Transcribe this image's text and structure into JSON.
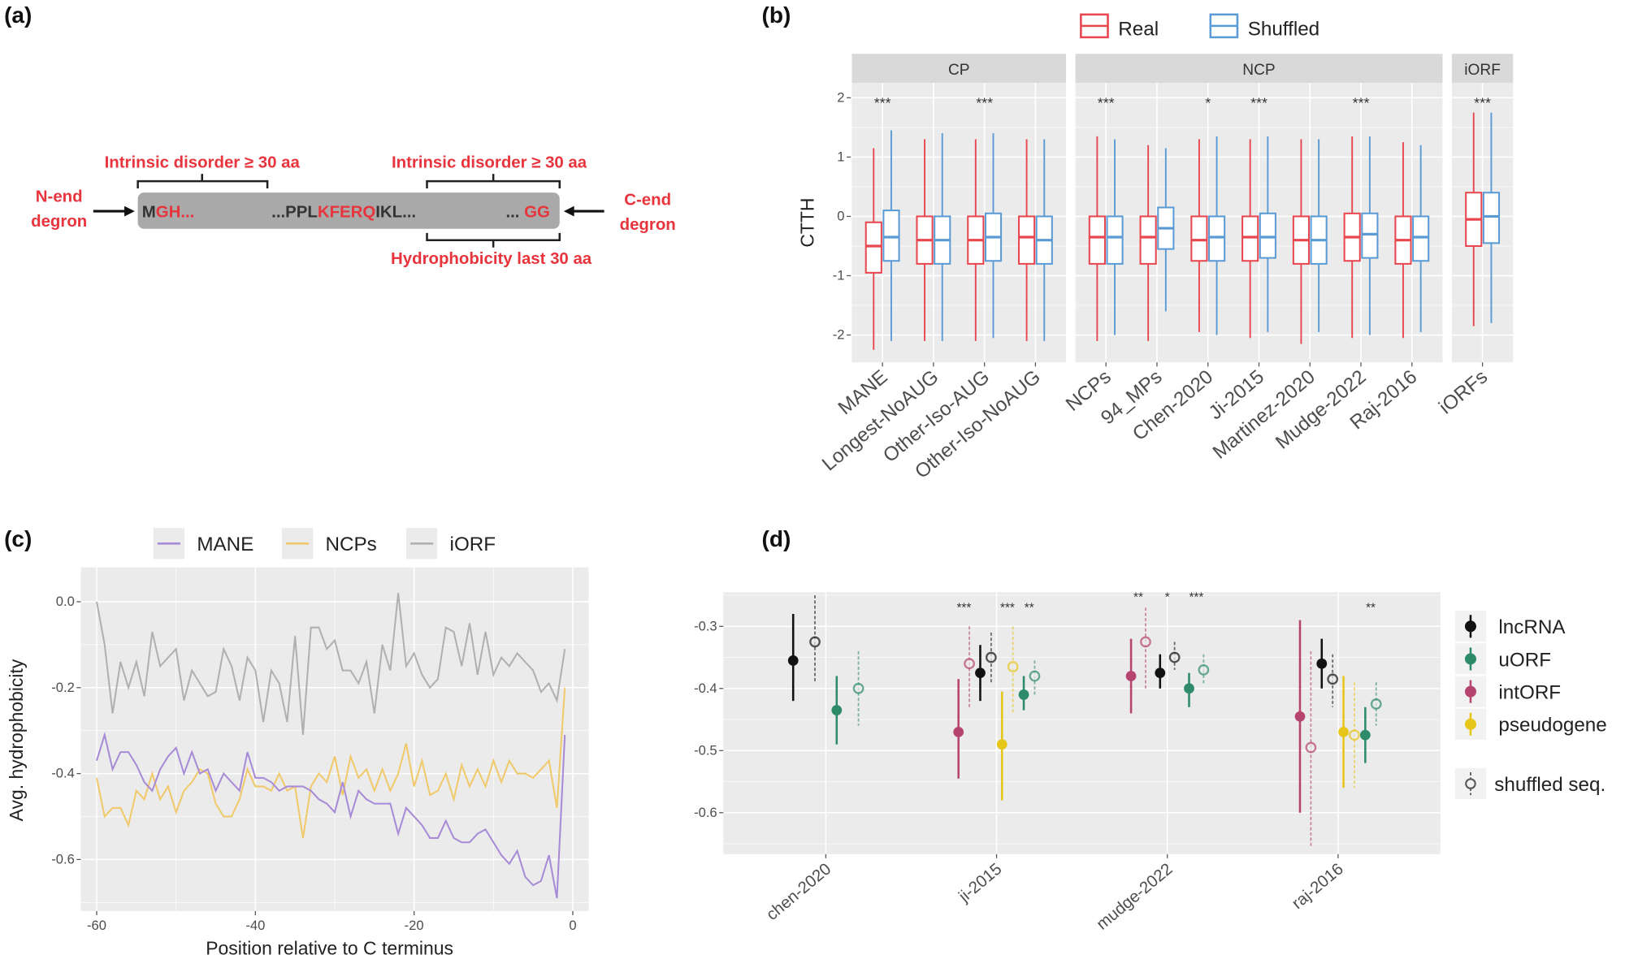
{
  "panel_labels": [
    "(a)",
    "(b)",
    "(c)",
    "(d)"
  ],
  "panel_a": {
    "n_label": [
      "N-end",
      "degron"
    ],
    "c_label": [
      "C-end",
      "degron"
    ],
    "top_left": "Intrinsic disorder ≥ 30 aa",
    "top_right": "Intrinsic disorder ≥ 30 aa",
    "bottom_right": "Hydrophobicity last 30 aa",
    "seq": {
      "m": "M",
      "gh": "GH...",
      "ppl": "...PPL",
      "kferq": "KFERQ",
      "ikl": "IKL...",
      "dots": "... ",
      "gg": "GG"
    },
    "colors": {
      "highlight": "#e8343c",
      "bar": "#a9a9a9"
    }
  },
  "chart_data": [
    {
      "type": "box",
      "panel": "b",
      "ylabel": "CTTH",
      "ylim": [
        -2.5,
        2.3
      ],
      "yticks": [
        -2,
        -1,
        0,
        1,
        2
      ],
      "legend": [
        {
          "name": "Real",
          "color": "#e8474f"
        },
        {
          "name": "Shuffled",
          "color": "#5b9bd5"
        }
      ],
      "legend_position": "top",
      "facets": [
        {
          "name": "CP",
          "categories": [
            {
              "label": "MANE",
              "sig": "***",
              "real": [
                -2.25,
                -0.95,
                -0.5,
                -0.1,
                1.15
              ],
              "shuffled": [
                -2.1,
                -0.75,
                -0.35,
                0.1,
                1.45
              ]
            },
            {
              "label": "Longest-NoAUG",
              "sig": "",
              "real": [
                -2.1,
                -0.8,
                -0.4,
                0.0,
                1.3
              ],
              "shuffled": [
                -2.1,
                -0.8,
                -0.4,
                0.0,
                1.4
              ]
            },
            {
              "label": "Other-Iso-AUG",
              "sig": "***",
              "real": [
                -2.1,
                -0.8,
                -0.4,
                0.0,
                1.3
              ],
              "shuffled": [
                -2.05,
                -0.75,
                -0.35,
                0.05,
                1.4
              ]
            },
            {
              "label": "Other-Iso-NoAUG",
              "sig": "",
              "real": [
                -2.1,
                -0.8,
                -0.35,
                0.0,
                1.3
              ],
              "shuffled": [
                -2.1,
                -0.8,
                -0.4,
                0.0,
                1.3
              ]
            }
          ]
        },
        {
          "name": "NCP",
          "categories": [
            {
              "label": "NCPs",
              "sig": "***",
              "real": [
                -2.1,
                -0.8,
                -0.35,
                0.0,
                1.35
              ],
              "shuffled": [
                -2.0,
                -0.8,
                -0.35,
                0.0,
                1.3
              ]
            },
            {
              "label": "94_MPs",
              "sig": "",
              "real": [
                -2.1,
                -0.8,
                -0.35,
                0.0,
                1.2
              ],
              "shuffled": [
                -1.6,
                -0.55,
                -0.2,
                0.15,
                1.15
              ]
            },
            {
              "label": "Chen-2020",
              "sig": "*",
              "real": [
                -1.95,
                -0.75,
                -0.4,
                0.0,
                1.3
              ],
              "shuffled": [
                -2.0,
                -0.75,
                -0.35,
                0.0,
                1.35
              ]
            },
            {
              "label": "Ji-2015",
              "sig": "***",
              "real": [
                -2.05,
                -0.75,
                -0.35,
                0.0,
                1.3
              ],
              "shuffled": [
                -1.95,
                -0.7,
                -0.35,
                0.05,
                1.35
              ]
            },
            {
              "label": "Martinez-2020",
              "sig": "",
              "real": [
                -2.15,
                -0.8,
                -0.4,
                0.0,
                1.3
              ],
              "shuffled": [
                -1.95,
                -0.8,
                -0.4,
                0.0,
                1.3
              ]
            },
            {
              "label": "Mudge-2022",
              "sig": "***",
              "real": [
                -2.05,
                -0.75,
                -0.35,
                0.05,
                1.35
              ],
              "shuffled": [
                -2.0,
                -0.7,
                -0.3,
                0.05,
                1.35
              ]
            },
            {
              "label": "Raj-2016",
              "sig": "",
              "real": [
                -2.05,
                -0.8,
                -0.4,
                0.0,
                1.25
              ],
              "shuffled": [
                -1.95,
                -0.75,
                -0.35,
                0.0,
                1.2
              ]
            }
          ]
        },
        {
          "name": "iORF",
          "categories": [
            {
              "label": "iORFs",
              "sig": "***",
              "real": [
                -1.85,
                -0.5,
                -0.05,
                0.4,
                1.75
              ],
              "shuffled": [
                -1.8,
                -0.45,
                0.0,
                0.4,
                1.75
              ]
            }
          ]
        }
      ]
    },
    {
      "type": "line",
      "panel": "c",
      "xlabel": "Position relative to C terminus",
      "ylabel": "Avg. hydrophobicity",
      "xlim": [
        -62,
        2
      ],
      "ylim": [
        -0.72,
        0.08
      ],
      "xticks": [
        -60,
        -40,
        -20,
        0
      ],
      "yticks": [
        0.0,
        -0.2,
        -0.4,
        -0.6
      ],
      "ytick_labels": [
        "0.0",
        "-0.2",
        "-0.4",
        "-0.6"
      ],
      "legend_position": "top",
      "x_start": -60,
      "series": [
        {
          "name": "MANE",
          "color": "#a88bd6",
          "values": [
            -0.37,
            -0.31,
            -0.39,
            -0.35,
            -0.35,
            -0.38,
            -0.42,
            -0.44,
            -0.39,
            -0.36,
            -0.34,
            -0.4,
            -0.35,
            -0.4,
            -0.39,
            -0.44,
            -0.4,
            -0.42,
            -0.44,
            -0.35,
            -0.41,
            -0.41,
            -0.42,
            -0.44,
            -0.43,
            -0.43,
            -0.43,
            -0.44,
            -0.46,
            -0.47,
            -0.49,
            -0.42,
            -0.5,
            -0.44,
            -0.46,
            -0.47,
            -0.47,
            -0.47,
            -0.54,
            -0.48,
            -0.5,
            -0.52,
            -0.55,
            -0.55,
            -0.51,
            -0.55,
            -0.56,
            -0.56,
            -0.54,
            -0.53,
            -0.56,
            -0.59,
            -0.61,
            -0.58,
            -0.64,
            -0.66,
            -0.65,
            -0.59,
            -0.69,
            -0.31
          ]
        },
        {
          "name": "NCPs",
          "color": "#f0c96a",
          "values": [
            -0.41,
            -0.5,
            -0.48,
            -0.48,
            -0.52,
            -0.44,
            -0.46,
            -0.4,
            -0.46,
            -0.43,
            -0.49,
            -0.44,
            -0.42,
            -0.39,
            -0.4,
            -0.47,
            -0.5,
            -0.5,
            -0.46,
            -0.39,
            -0.43,
            -0.43,
            -0.44,
            -0.4,
            -0.44,
            -0.43,
            -0.55,
            -0.43,
            -0.4,
            -0.42,
            -0.36,
            -0.45,
            -0.36,
            -0.41,
            -0.39,
            -0.44,
            -0.39,
            -0.44,
            -0.4,
            -0.33,
            -0.43,
            -0.37,
            -0.45,
            -0.44,
            -0.4,
            -0.46,
            -0.38,
            -0.43,
            -0.39,
            -0.43,
            -0.37,
            -0.42,
            -0.37,
            -0.4,
            -0.4,
            -0.41,
            -0.39,
            -0.37,
            -0.48,
            -0.2
          ]
        },
        {
          "name": "iORF",
          "color": "#b0b0b0",
          "values": [
            0.0,
            -0.1,
            -0.26,
            -0.14,
            -0.2,
            -0.14,
            -0.22,
            -0.07,
            -0.15,
            -0.13,
            -0.11,
            -0.23,
            -0.16,
            -0.19,
            -0.22,
            -0.21,
            -0.11,
            -0.15,
            -0.23,
            -0.13,
            -0.16,
            -0.28,
            -0.16,
            -0.19,
            -0.28,
            -0.08,
            -0.31,
            -0.06,
            -0.06,
            -0.11,
            -0.09,
            -0.16,
            -0.16,
            -0.19,
            -0.14,
            -0.26,
            -0.1,
            -0.16,
            0.02,
            -0.15,
            -0.12,
            -0.17,
            -0.2,
            -0.18,
            -0.06,
            -0.07,
            -0.15,
            -0.05,
            -0.17,
            -0.07,
            -0.17,
            -0.13,
            -0.15,
            -0.12,
            -0.14,
            -0.16,
            -0.21,
            -0.19,
            -0.23,
            -0.11
          ]
        }
      ]
    },
    {
      "type": "pointrange",
      "panel": "d",
      "ylim": [
        -0.665,
        -0.255
      ],
      "yticks": [
        -0.3,
        -0.4,
        -0.5,
        -0.6
      ],
      "legend": [
        {
          "name": "lncRNA",
          "color": "#111111"
        },
        {
          "name": "uORF",
          "color": "#2e8b6a"
        },
        {
          "name": "intORF",
          "color": "#b5446e"
        },
        {
          "name": "pseudogene",
          "color": "#e6c619"
        }
      ],
      "shuffled_legend": "shuffled seq.",
      "legend_position": "right",
      "categories": [
        {
          "label": "chen-2020",
          "points": [
            {
              "type": "lncRNA",
              "real": [
                -0.355,
                -0.42,
                -0.28
              ],
              "shuffled": [
                -0.325,
                -0.39,
                -0.25
              ],
              "sig": ""
            },
            {
              "type": "uORF",
              "real": [
                -0.435,
                -0.49,
                -0.38
              ],
              "shuffled": [
                -0.4,
                -0.46,
                -0.34
              ],
              "sig": ""
            }
          ]
        },
        {
          "label": "ji-2015",
          "points": [
            {
              "type": "intORF",
              "real": [
                -0.47,
                -0.545,
                -0.385
              ],
              "shuffled": [
                -0.36,
                -0.43,
                -0.3
              ],
              "sig": "***"
            },
            {
              "type": "lncRNA",
              "real": [
                -0.375,
                -0.42,
                -0.33
              ],
              "shuffled": [
                -0.35,
                -0.39,
                -0.31
              ],
              "sig": ""
            },
            {
              "type": "pseudogene",
              "real": [
                -0.49,
                -0.58,
                -0.405
              ],
              "shuffled": [
                -0.365,
                -0.44,
                -0.3
              ],
              "sig": "***"
            },
            {
              "type": "uORF",
              "real": [
                -0.41,
                -0.435,
                -0.38
              ],
              "shuffled": [
                -0.38,
                -0.41,
                -0.355
              ],
              "sig": "**"
            }
          ]
        },
        {
          "label": "mudge-2022",
          "points": [
            {
              "type": "intORF",
              "real": [
                -0.38,
                -0.44,
                -0.32
              ],
              "shuffled": [
                -0.325,
                -0.4,
                -0.27
              ],
              "sig": "**"
            },
            {
              "type": "lncRNA",
              "real": [
                -0.375,
                -0.4,
                -0.345
              ],
              "shuffled": [
                -0.35,
                -0.37,
                -0.325
              ],
              "sig": "*"
            },
            {
              "type": "uORF",
              "real": [
                -0.4,
                -0.43,
                -0.375
              ],
              "shuffled": [
                -0.37,
                -0.395,
                -0.345
              ],
              "sig": "***"
            }
          ]
        },
        {
          "label": "raj-2016",
          "points": [
            {
              "type": "intORF",
              "real": [
                -0.445,
                -0.6,
                -0.29
              ],
              "shuffled": [
                -0.495,
                -0.655,
                -0.34
              ],
              "sig": ""
            },
            {
              "type": "lncRNA",
              "real": [
                -0.36,
                -0.4,
                -0.32
              ],
              "shuffled": [
                -0.385,
                -0.43,
                -0.345
              ],
              "sig": ""
            },
            {
              "type": "pseudogene",
              "real": [
                -0.47,
                -0.56,
                -0.38
              ],
              "shuffled": [
                -0.475,
                -0.56,
                -0.39
              ],
              "sig": ""
            },
            {
              "type": "uORF",
              "real": [
                -0.475,
                -0.52,
                -0.43
              ],
              "shuffled": [
                -0.425,
                -0.46,
                -0.39
              ],
              "sig": "**"
            }
          ]
        }
      ]
    }
  ]
}
